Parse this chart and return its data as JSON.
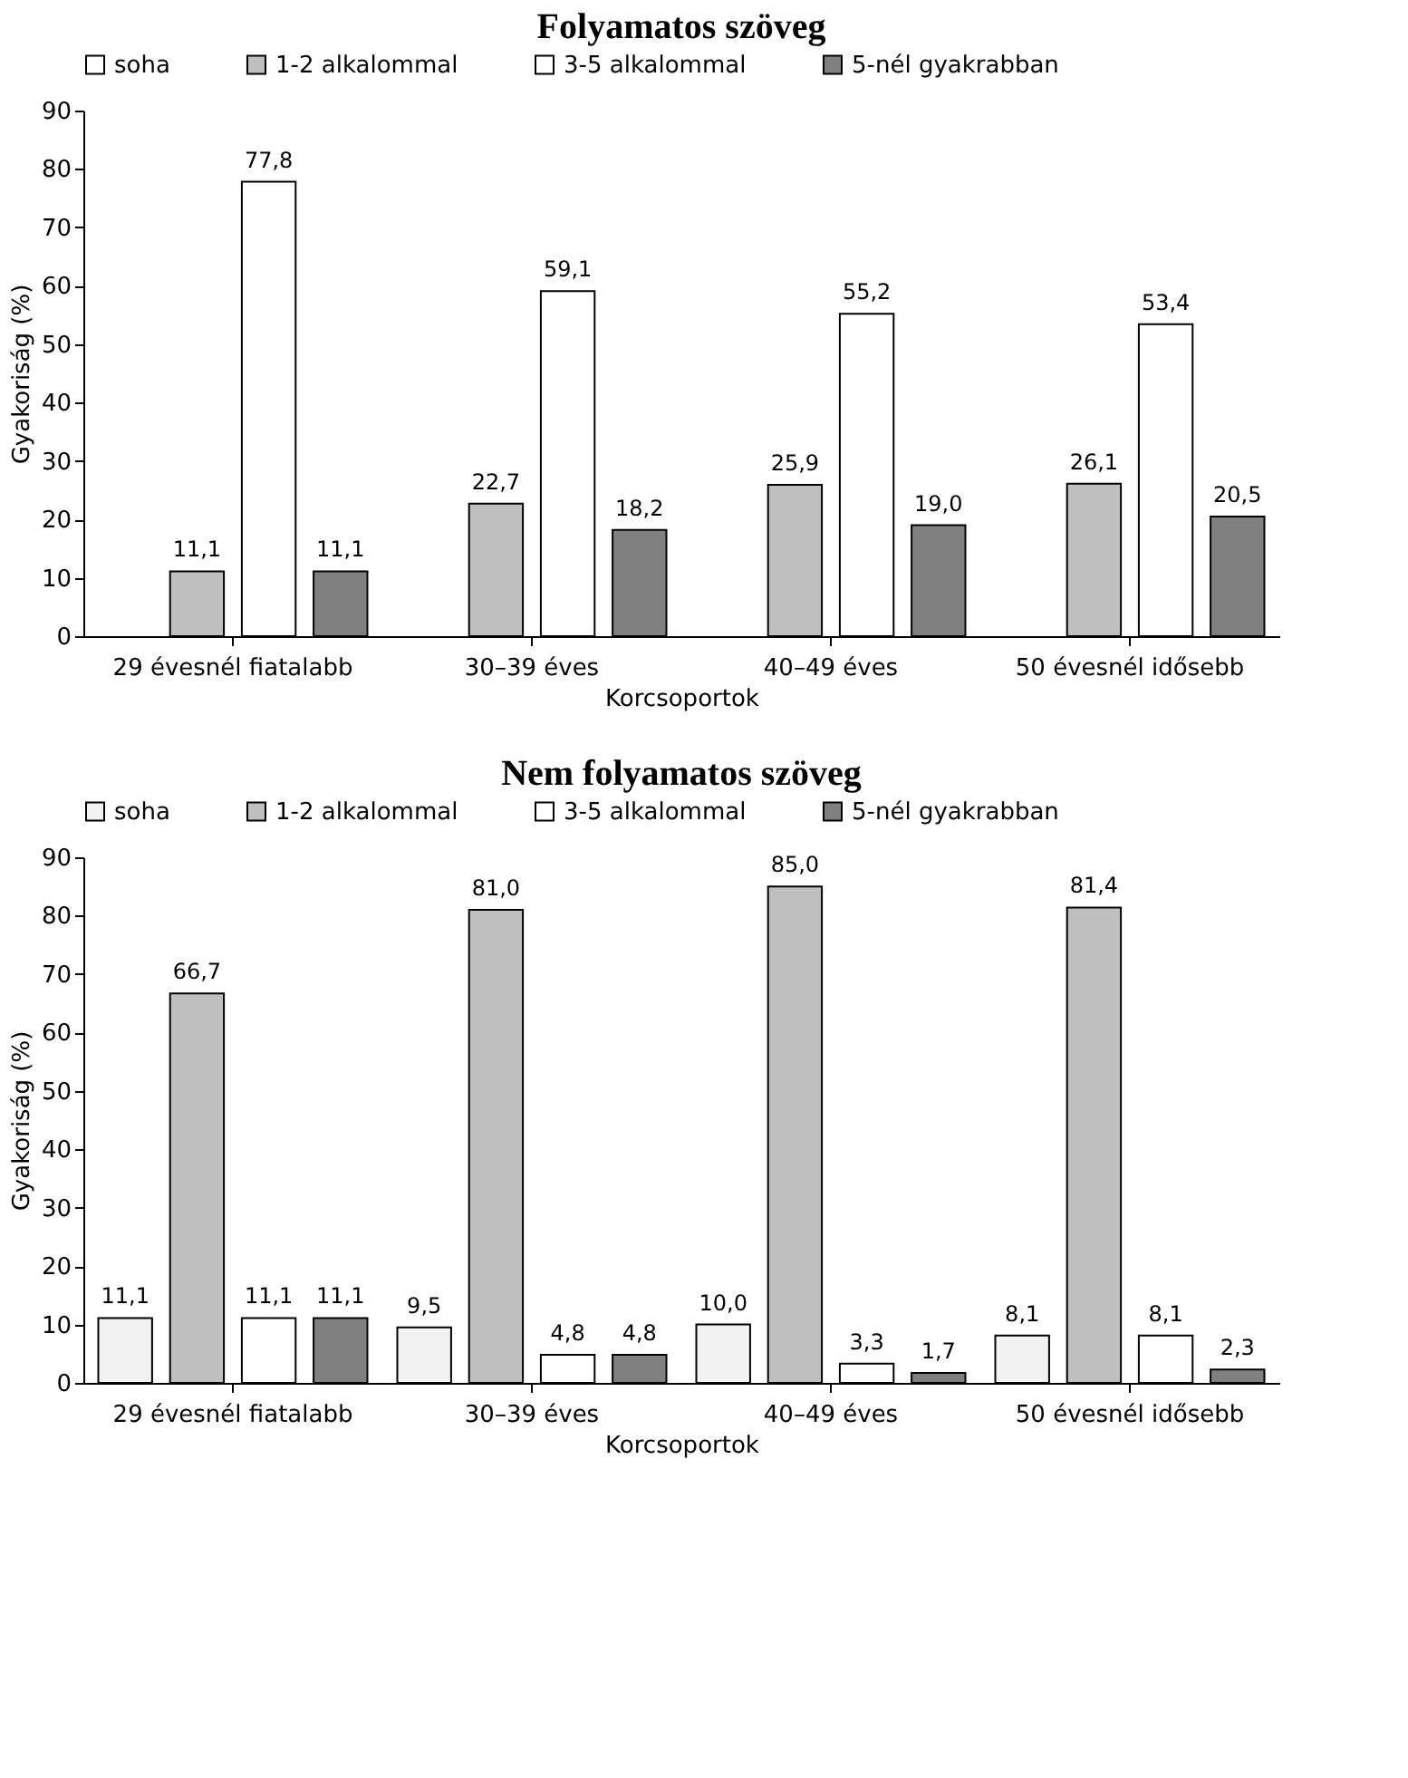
{
  "chart_data": [
    {
      "type": "bar",
      "title": "Folyamatos szöveg",
      "xlabel": "Korcsoportok",
      "ylabel": "Gyakoriság (%)",
      "categories": [
        "29 évesnél fiatalabb",
        "30–39 éves",
        "40–49 éves",
        "50 évesnél idősebb"
      ],
      "series": [
        {
          "name": "soha",
          "color": "#ffffff",
          "values": [
            null,
            null,
            null,
            null
          ],
          "value_labels": [
            null,
            null,
            null,
            null
          ]
        },
        {
          "name": "1-2 alkalommal",
          "color": "#bfbfbf",
          "values": [
            11.1,
            22.7,
            25.9,
            26.1
          ],
          "value_labels": [
            "11,1",
            "22,7",
            "25,9",
            "26,1"
          ]
        },
        {
          "name": "3-5 alkalommal",
          "color": "#ffffff",
          "values": [
            77.8,
            59.1,
            55.2,
            53.4
          ],
          "value_labels": [
            "77,8",
            "59,1",
            "55,2",
            "53,4"
          ]
        },
        {
          "name": "5-nél gyakrabban",
          "color": "#808080",
          "values": [
            11.1,
            18.2,
            19.0,
            20.5
          ],
          "value_labels": [
            "11,1",
            "18,2",
            "19,0",
            "20,5"
          ]
        }
      ],
      "ylim": [
        0,
        90
      ],
      "yticks": [
        0,
        10,
        20,
        30,
        40,
        50,
        60,
        70,
        80,
        90
      ],
      "grid": false,
      "legend": "top"
    },
    {
      "type": "bar",
      "title": "Nem folyamatos szöveg",
      "xlabel": "Korcsoportok",
      "ylabel": "Gyakoriság (%)",
      "categories": [
        "29 évesnél fiatalabb",
        "30–39 éves",
        "40–49 éves",
        "50 évesnél idősebb"
      ],
      "series": [
        {
          "name": "soha",
          "color": "#f2f2f2",
          "values": [
            11.1,
            9.5,
            10.0,
            8.1
          ],
          "value_labels": [
            "11,1",
            "9,5",
            "10,0",
            "8,1"
          ]
        },
        {
          "name": "1-2 alkalommal",
          "color": "#bfbfbf",
          "values": [
            66.7,
            81.0,
            85.0,
            81.4
          ],
          "value_labels": [
            "66,7",
            "81,0",
            "85,0",
            "81,4"
          ]
        },
        {
          "name": "3-5 alkalommal",
          "color": "#ffffff",
          "values": [
            11.1,
            4.8,
            3.3,
            8.1
          ],
          "value_labels": [
            "11,1",
            "4,8",
            "3,3",
            "8,1"
          ]
        },
        {
          "name": "5-nél gyakrabban",
          "color": "#808080",
          "values": [
            11.1,
            4.8,
            1.7,
            2.3
          ],
          "value_labels": [
            "11,1",
            "4,8",
            "1,7",
            "2,3"
          ]
        }
      ],
      "ylim": [
        0,
        90
      ],
      "yticks": [
        0,
        10,
        20,
        30,
        40,
        50,
        60,
        70,
        80,
        90
      ],
      "grid": false,
      "legend": "top"
    }
  ]
}
